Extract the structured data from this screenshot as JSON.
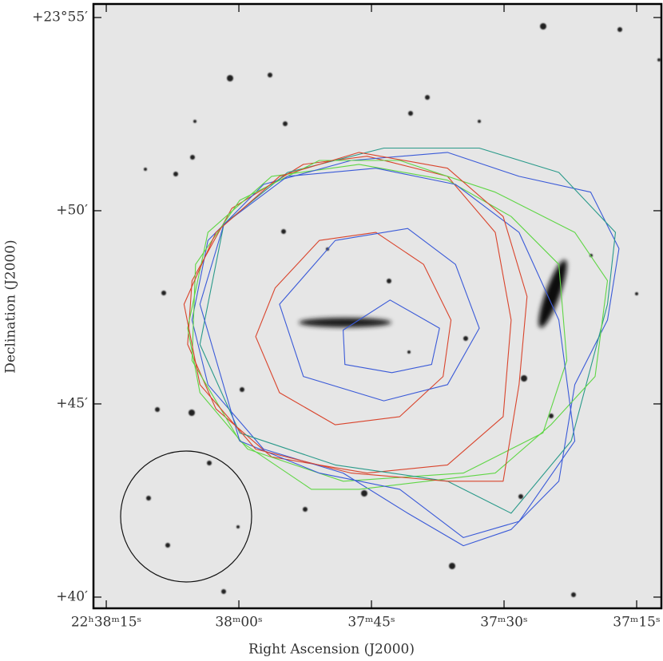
{
  "chart_data": {
    "type": "contour",
    "x_label": "Right Ascension (J2000)",
    "y_label": "Declination (J2000)",
    "xlim": [
      76.45,
      12.2
    ],
    "ylim": [
      39.71,
      55.35
    ],
    "xticks": [
      {
        "value": 75,
        "label": "22ʰ38ᵐ15ˢ"
      },
      {
        "value": 60,
        "label": "38ᵐ00ˢ"
      },
      {
        "value": 45,
        "label": "37ᵐ45ˢ"
      },
      {
        "value": 30,
        "label": "37ᵐ30ˢ"
      },
      {
        "value": 15,
        "label": "37ᵐ15ˢ"
      }
    ],
    "yticks": [
      {
        "value": 55,
        "label": "+23°55′"
      },
      {
        "value": 50,
        "label": "+50′"
      },
      {
        "value": 45,
        "label": "+45′"
      },
      {
        "value": 40,
        "label": "+40′"
      }
    ],
    "contours": [
      {
        "color": "#3a5ad8",
        "x": [
          48.2,
          42.9,
          37.3,
          38.2,
          42.7,
          48.0
        ],
        "y": [
          46.91,
          47.69,
          46.96,
          46.02,
          45.81,
          46.02
        ]
      },
      {
        "color": "#d9442c",
        "x": [
          55.9,
          50.9,
          44.5,
          39.1,
          36.0,
          36.9,
          41.8,
          49.1,
          55.4,
          58.1
        ],
        "y": [
          48.0,
          49.23,
          49.44,
          48.61,
          47.17,
          45.71,
          44.67,
          44.46,
          45.29,
          46.74
        ]
      },
      {
        "color": "#3a5ad8",
        "x": [
          55.4,
          49.1,
          40.9,
          35.5,
          32.8,
          36.4,
          43.6,
          52.7
        ],
        "y": [
          47.58,
          49.23,
          49.54,
          48.61,
          46.96,
          45.5,
          45.08,
          45.71
        ]
      },
      {
        "color": "#d9442c",
        "x": [
          65.3,
          60.8,
          52.7,
          45.5,
          36.4,
          31.0,
          29.2,
          30.1,
          36.4,
          45.5,
          56.3,
          62.6,
          65.8
        ],
        "y": [
          48.19,
          50.06,
          51.2,
          51.41,
          50.89,
          49.44,
          47.17,
          44.67,
          43.42,
          43.21,
          43.63,
          44.87,
          46.54
        ]
      },
      {
        "color": "#5fd645",
        "x": [
          65.8,
          63.5,
          56.3,
          46.4,
          36.4,
          29.2,
          23.8,
          22.9,
          25.6,
          34.6,
          48.2,
          59.0,
          64.4
        ],
        "y": [
          46.96,
          49.44,
          50.89,
          51.2,
          50.79,
          49.85,
          48.61,
          46.12,
          44.25,
          43.21,
          43.0,
          43.83,
          45.29
        ]
      },
      {
        "color": "#3a5ad8",
        "x": [
          63.5,
          57.2,
          47.3,
          36.4,
          28.3,
          20.2,
          17.0,
          18.3,
          22.0,
          23.8,
          29.2,
          34.6,
          40.9,
          48.2,
          57.2,
          63.5,
          65.3
        ],
        "y": [
          49.23,
          50.68,
          51.3,
          51.51,
          50.89,
          50.48,
          49.02,
          47.17,
          45.5,
          43.0,
          41.75,
          41.33,
          42.17,
          43.21,
          43.83,
          45.5,
          47.17
        ]
      },
      {
        "color": "#2a9a8a",
        "x": [
          61.7,
          54.5,
          43.6,
          32.8,
          23.8,
          17.4,
          18.3,
          22.4,
          29.2,
          36.4,
          49.1,
          59.9,
          64.4
        ],
        "y": [
          49.65,
          50.99,
          51.62,
          51.62,
          50.99,
          49.44,
          47.58,
          44.04,
          42.17,
          43.0,
          43.42,
          44.25,
          46.54
        ]
      },
      {
        "color": "#5fd645",
        "x": [
          64.9,
          59.9,
          50.9,
          41.8,
          31.0,
          22.0,
          18.3,
          19.7,
          24.7,
          31.0,
          46.4,
          51.8,
          59.9,
          65.3
        ],
        "y": [
          48.61,
          50.27,
          51.3,
          51.3,
          50.48,
          49.44,
          48.19,
          45.71,
          44.46,
          43.21,
          42.79,
          42.79,
          44.04,
          46.12
        ]
      },
      {
        "color": "#3a5ad8",
        "x": [
          64.4,
          61.7,
          54.5,
          44.5,
          35.5,
          28.3,
          23.8,
          22.0,
          28.3,
          34.6,
          41.8,
          50.9,
          59.9
        ],
        "y": [
          47.58,
          49.65,
          50.89,
          51.1,
          50.68,
          49.44,
          47.17,
          44.04,
          41.96,
          41.54,
          42.79,
          43.21,
          44.04
        ]
      },
      {
        "color": "#d9442c",
        "x": [
          66.2,
          62.6,
          55.4,
          46.4,
          36.4,
          30.1,
          27.4,
          28.3,
          30.1,
          36.4,
          47.3,
          58.1,
          64.4
        ],
        "y": [
          47.58,
          49.44,
          50.89,
          51.51,
          51.1,
          49.85,
          47.78,
          45.5,
          43.0,
          43.0,
          43.21,
          43.83,
          45.5
        ]
      }
    ]
  }
}
